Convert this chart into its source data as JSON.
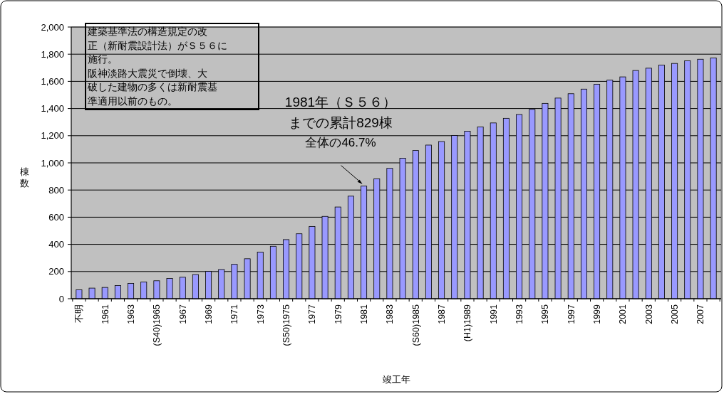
{
  "chart_data": {
    "type": "bar",
    "xlabel": "竣工年",
    "ylabel": "棟数",
    "categories": [
      "不明",
      null,
      "1961",
      null,
      "1963",
      null,
      "(S40)1965",
      null,
      "1967",
      null,
      "1969",
      null,
      "1971",
      null,
      "1973",
      null,
      "(S50)1975",
      null,
      "1977",
      null,
      "1979",
      null,
      "1981",
      null,
      "1983",
      null,
      "(S60)1985",
      null,
      "1987",
      null,
      "(H1)1989",
      null,
      "1991",
      null,
      "1993",
      null,
      "1995",
      null,
      "1997",
      null,
      "1999",
      null,
      "2001",
      null,
      "2003",
      null,
      "2005",
      null,
      "2007",
      null
    ],
    "values": [
      66,
      78,
      83,
      97,
      113,
      123,
      132,
      149,
      158,
      178,
      201,
      215,
      253,
      294,
      343,
      386,
      435,
      478,
      532,
      606,
      675,
      755,
      829,
      882,
      960,
      1034,
      1091,
      1131,
      1157,
      1202,
      1233,
      1264,
      1294,
      1328,
      1356,
      1394,
      1438,
      1477,
      1509,
      1543,
      1578,
      1609,
      1633,
      1680,
      1697,
      1720,
      1732,
      1751,
      1763,
      1772
    ],
    "color": "#9999ff",
    "ylim": [
      0,
      2000
    ],
    "yticks": [
      {
        "value": 0,
        "label": "0"
      },
      {
        "value": 200,
        "label": "200"
      },
      {
        "value": 400,
        "label": "400"
      },
      {
        "value": 600,
        "label": "600"
      },
      {
        "value": 800,
        "label": "800"
      },
      {
        "value": 1000,
        "label": "1,000"
      },
      {
        "value": 1200,
        "label": "1,200"
      },
      {
        "value": 1400,
        "label": "1,400"
      },
      {
        "value": 1600,
        "label": "1,600"
      },
      {
        "value": 1800,
        "label": "1,800"
      },
      {
        "value": 2000,
        "label": "2,000"
      }
    ],
    "grid": "y",
    "annotations": [
      "建築基準法の構造規定の改正（新耐震設計法）がＳ５６に施行。",
      "阪神淡路大震災で倒壊、大破した建物の多くは新耐震基準適用以前のもの。",
      {
        "text": "1981年（Ｓ５６）までの累計829棟全体の46.7%",
        "x": "1981",
        "y": 829
      }
    ]
  }
}
